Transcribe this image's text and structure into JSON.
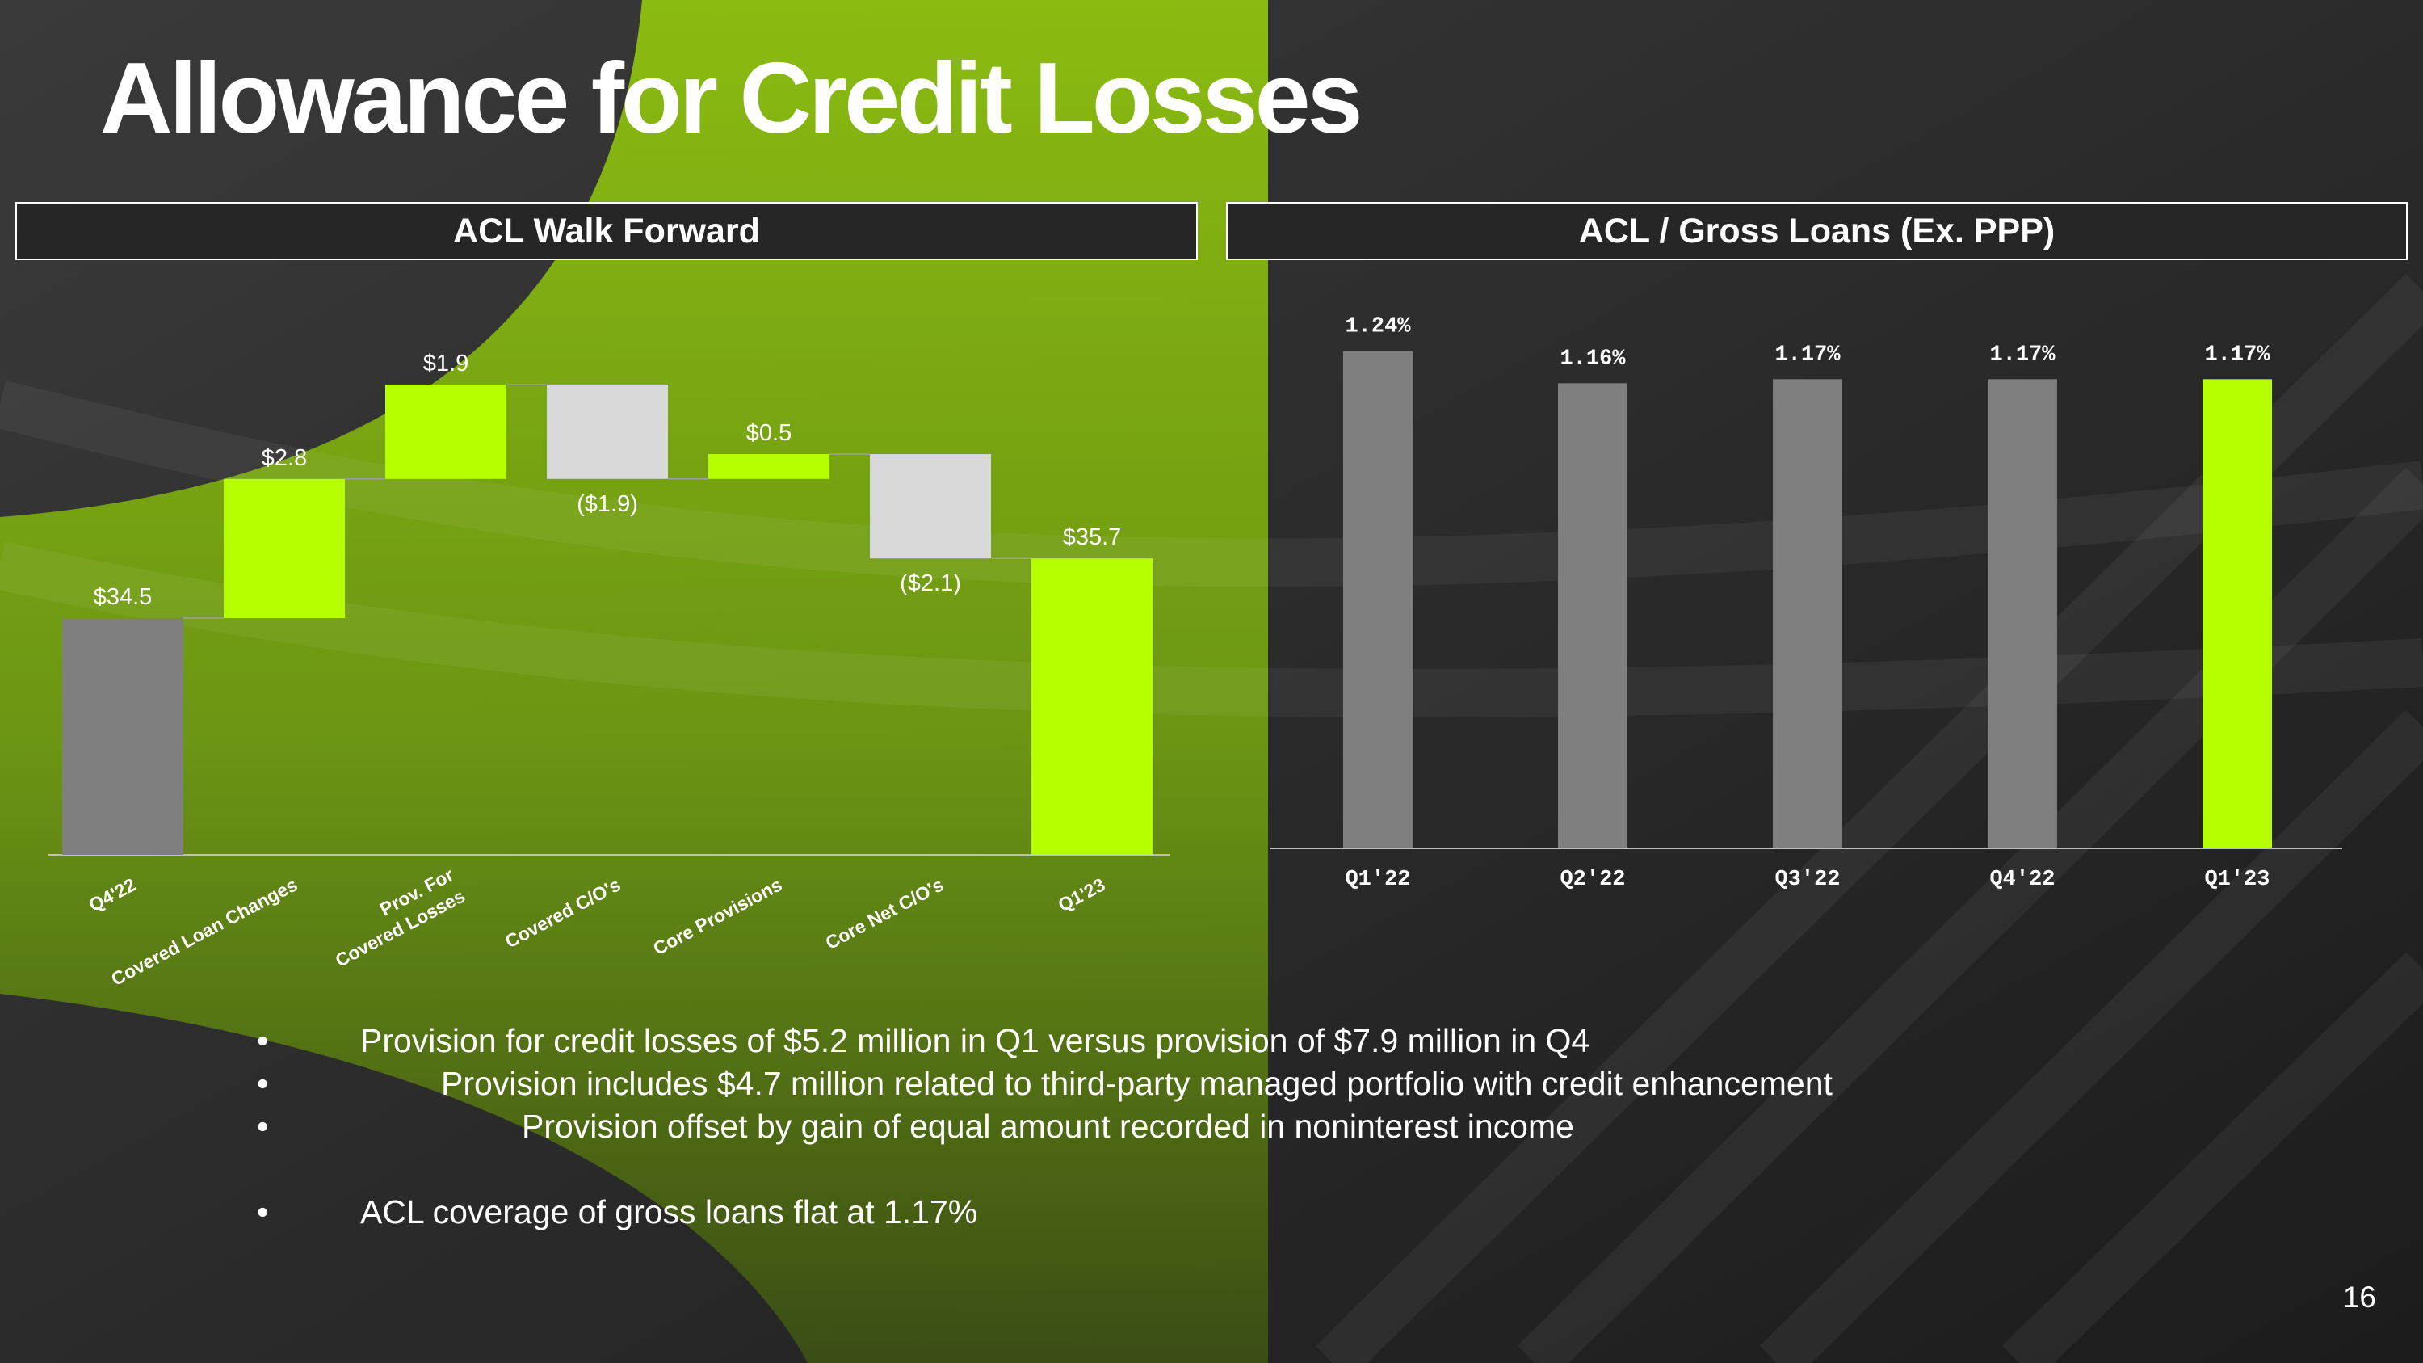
{
  "slide": {
    "title": "Allowance for Credit Losses",
    "page_number": "16"
  },
  "panels": {
    "left_title": "ACL Walk Forward",
    "right_title": "ACL / Gross Loans (Ex. PPP)"
  },
  "colors": {
    "accent": "#B5FF00",
    "total_gray": "#7F7F7F",
    "decrease": "#D9D9D9",
    "background": "#262626",
    "band_green": "#6E9A12"
  },
  "chart_data": [
    {
      "type": "bar",
      "subtype": "waterfall",
      "title": "ACL Walk Forward",
      "categories": [
        "Q4'22",
        "Covered Loan Changes",
        "Prov. For Covered Losses",
        "Covered C/O's",
        "Core Provisions",
        "Core Net C/O's",
        "Q1'23"
      ],
      "category_lines": [
        [
          "Q4'22"
        ],
        [
          "Covered Loan Changes"
        ],
        [
          "Prov. For",
          "Covered Losses"
        ],
        [
          "Covered C/O's"
        ],
        [
          "Core Provisions"
        ],
        [
          "Core Net C/O's"
        ],
        [
          "Q1'23"
        ]
      ],
      "values": [
        34.5,
        2.8,
        1.9,
        -1.9,
        0.5,
        -2.1,
        35.7
      ],
      "kinds": [
        "total",
        "increase",
        "increase",
        "decrease",
        "increase",
        "decrease",
        "total"
      ],
      "data_labels": [
        "$34.5",
        "$2.8",
        "$1.9",
        "($1.9)",
        "$0.5",
        "($2.1)",
        "$35.7"
      ],
      "colors": [
        "#7F7F7F",
        "#B5FF00",
        "#B5FF00",
        "#D9D9D9",
        "#B5FF00",
        "#D9D9D9",
        "#B5FF00"
      ],
      "ylim": [
        0,
        40
      ],
      "grid": false,
      "legend": "none"
    },
    {
      "type": "bar",
      "title": "ACL / Gross Loans (Ex. PPP)",
      "categories": [
        "Q1'22",
        "Q2'22",
        "Q3'22",
        "Q4'22",
        "Q1'23"
      ],
      "values": [
        1.24,
        1.16,
        1.17,
        1.17,
        1.17
      ],
      "data_labels": [
        "1.24%",
        "1.16%",
        "1.17%",
        "1.17%",
        "1.17%"
      ],
      "colors": [
        "#7F7F7F",
        "#7F7F7F",
        "#7F7F7F",
        "#7F7F7F",
        "#B5FF00"
      ],
      "ylim": [
        0,
        1.35
      ],
      "grid": false,
      "legend": "none"
    }
  ],
  "bullets": [
    {
      "level": 1,
      "text": "Provision for credit losses of $5.2 million in Q1 versus provision of $7.9 million in Q4"
    },
    {
      "level": 2,
      "text": "Provision includes $4.7 million related to third-party managed portfolio with credit enhancement"
    },
    {
      "level": 3,
      "text": "Provision offset by gain of equal amount recorded in noninterest income"
    },
    {
      "level": 1,
      "text": "ACL coverage of gross loans flat at 1.17%"
    }
  ]
}
